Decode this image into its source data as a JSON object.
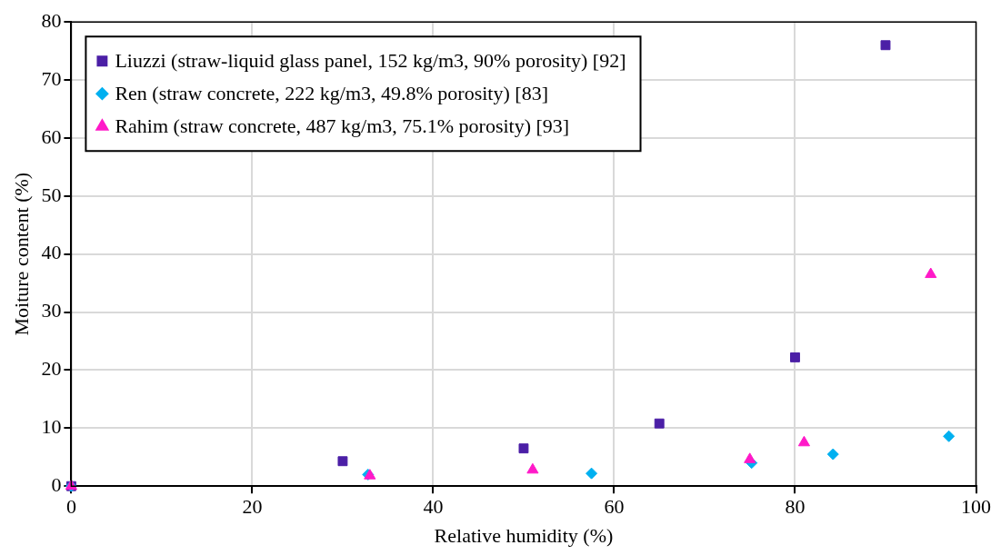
{
  "chart_data": {
    "type": "scatter",
    "xlabel": "Relative humidity (%)",
    "ylabel": "Moiture content (%)",
    "xlim": [
      0,
      100
    ],
    "xticks": [
      0,
      20,
      40,
      60,
      80,
      100
    ],
    "ylim": [
      0,
      80
    ],
    "yticks": [
      0,
      10,
      20,
      30,
      40,
      50,
      60,
      70,
      80
    ],
    "grid": true,
    "legend": "top left",
    "series": [
      {
        "name": "Liuzzi (straw-liquid glass panel, 152 kg/m3, 90% porosity) [92]",
        "color": "#4b1fa6",
        "marker": "square",
        "x": [
          0,
          30,
          50,
          65,
          80,
          90
        ],
        "values": [
          0,
          4.3,
          6.5,
          10.8,
          22.2,
          76
        ]
      },
      {
        "name": "Ren (straw concrete, 222 kg/m3, 49.8% porosity) [83]",
        "color": "#00b0f0",
        "marker": "diamond",
        "x": [
          0,
          32.8,
          57.5,
          75.2,
          84.2,
          97
        ],
        "values": [
          0,
          2.0,
          2.2,
          4.0,
          5.5,
          8.6
        ]
      },
      {
        "name": "Rahim (straw concrete, 487 kg/m3, 75.1% porosity) [93]",
        "color": "#ff19c8",
        "marker": "triangle",
        "x": [
          0,
          33,
          51,
          75,
          81,
          95
        ],
        "values": [
          0,
          1.8,
          2.8,
          4.6,
          7.5,
          36.5
        ]
      }
    ]
  }
}
